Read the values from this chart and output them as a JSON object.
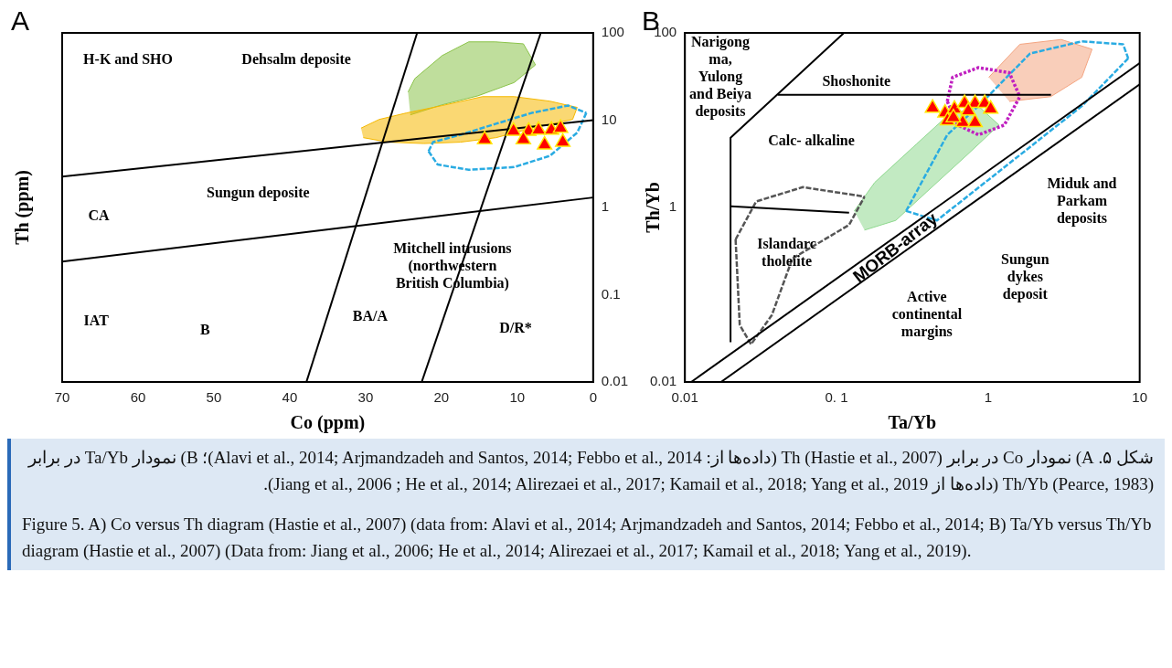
{
  "chart_data": [
    {
      "type": "scatter",
      "xlabel": "Co (ppm)",
      "ylabel": "Th (ppm)",
      "log": "y2",
      "xlim": [
        70,
        0
      ],
      "xticks": [
        70,
        60,
        50,
        40,
        30,
        20,
        10,
        0
      ],
      "y2lim": [
        0.01,
        100
      ],
      "y2ticks": [
        0.01,
        0.1,
        1,
        10,
        100
      ],
      "grid": false,
      "legend": false,
      "series": [
        {
          "type": "area",
          "color": "#8bc34a",
          "marker": "none",
          "axis": "y2",
          "x": [
            24.4,
            23.5,
            19.9,
            16.4,
            12.9,
            9.2,
            7.6,
            10.4,
            15.2,
            19.9,
            24.1
          ],
          "values": [
            21,
            30,
            55,
            79,
            79,
            75,
            43,
            27,
            19,
            15,
            11.5
          ]
        },
        {
          "type": "area",
          "color": "#f5b800",
          "marker": "none",
          "axis": "y2",
          "x": [
            30.6,
            28.2,
            24.6,
            19.9,
            14.6,
            10.4,
            5.7,
            2.1,
            2.7,
            8.1,
            12.8,
            17.5,
            22.3,
            27.0,
            30.3
          ],
          "values": [
            8.1,
            10.2,
            12.1,
            14.7,
            18.6,
            18.6,
            16.5,
            14,
            10.2,
            8.1,
            6.3,
            5.6,
            5.4,
            5.6,
            6.3
          ]
        },
        {
          "type": "line",
          "color": "#29abe2",
          "marker": "none",
          "line_style": "dashed",
          "axis": "y2",
          "x": [
            21.7,
            21.1,
            17.5,
            12.8,
            8.1,
            3.3,
            0.9
          ],
          "values": [
            4.4,
            5.6,
            6.8,
            9.1,
            12.1,
            14.7,
            12.1
          ]
        },
        {
          "type": "line",
          "color": "#29abe2",
          "marker": "none",
          "line_style": "dashed",
          "axis": "y2",
          "x": [
            21.7,
            20.5,
            16.4,
            10.4,
            5.7,
            2.1,
            0.9
          ],
          "values": [
            4.4,
            3.1,
            2.7,
            2.9,
            3.9,
            7.2,
            12.1
          ]
        },
        {
          "type": "line",
          "color": "#000000",
          "marker": "none",
          "axis": "y2",
          "x": [
            70,
            0
          ],
          "values": [
            2.26,
            10
          ]
        },
        {
          "type": "line",
          "color": "#000000",
          "marker": "none",
          "axis": "y2",
          "x": [
            70,
            0
          ],
          "values": [
            0.24,
            1.3
          ]
        },
        {
          "type": "line",
          "color": "#000000",
          "marker": "none",
          "axis": "y2",
          "x": [
            37.8,
            23.2
          ],
          "values": [
            0.01,
            100
          ]
        },
        {
          "type": "line",
          "color": "#000000",
          "marker": "none",
          "axis": "y2",
          "x": [
            22.6,
            6.9
          ],
          "values": [
            0.01,
            100
          ]
        },
        {
          "type": "scatter",
          "color": "#ff0000",
          "marker": "triangle",
          "axis": "y2",
          "x": [
            14.3,
            10.5,
            8.5,
            7.2,
            5.5,
            4.3,
            9.2,
            6.4,
            4.0
          ],
          "values": [
            6.0,
            7.5,
            7.5,
            7.7,
            7.7,
            8.1,
            6.0,
            5.2,
            5.6
          ]
        }
      ],
      "annotations": [
        "A",
        "H-K and SHO",
        "Dehsalm deposite",
        "Sungun deposite",
        "CA",
        "Mitchell intrusions\n(northwestern\nBritish Columbia)",
        "IAT",
        "B",
        "BA/A",
        "D/R*"
      ]
    },
    {
      "type": "scatter",
      "xlabel": "Ta/Yb",
      "ylabel": "Th/Yb",
      "log": "xy",
      "xlim": [
        0.01,
        10
      ],
      "xticks": [
        {
          "value": 0.01,
          "label": "0.01"
        },
        {
          "value": 0.1,
          "label": "0. 1"
        },
        {
          "value": 1,
          "label": "1"
        },
        {
          "value": 10,
          "label": "10"
        }
      ],
      "ylim": [
        0.01,
        100
      ],
      "yticks": [
        0.01,
        1,
        100
      ],
      "grid": false,
      "legend": false,
      "series": [
        {
          "type": "area",
          "color": "#8fd88f",
          "marker": "none",
          "x": [
            0.131,
            0.179,
            0.336,
            0.538,
            0.863,
            1.18,
            0.738,
            0.394,
            0.246,
            0.153
          ],
          "values": [
            0.91,
            1.94,
            5.3,
            11.2,
            14.5,
            8.8,
            4.1,
            1.51,
            0.71,
            0.55
          ]
        },
        {
          "type": "area",
          "color": "#f4a582",
          "marker": "none",
          "x": [
            1.01,
            1.62,
            3.03,
            4.85,
            4.15,
            2.59,
            1.38
          ],
          "values": [
            31,
            74,
            84,
            65,
            31,
            18.6,
            16.4
          ]
        },
        {
          "type": "line",
          "color": "#29abe2",
          "marker": "none",
          "line_style": "dashed",
          "x": [
            0.288,
            0.538,
            0.863,
            1.89,
            4.15,
            7.77,
            8.4
          ],
          "values": [
            0.91,
            6.8,
            14.5,
            58,
            80,
            74,
            51
          ]
        },
        {
          "type": "line",
          "color": "#29abe2",
          "marker": "none",
          "line_style": "dashed",
          "x": [
            0.288,
            0.46,
            1.38,
            4.15,
            8.4
          ],
          "values": [
            0.91,
            0.71,
            3.2,
            14.5,
            51
          ]
        },
        {
          "type": "line",
          "color": "#555555",
          "marker": "none",
          "line_style": "dashed",
          "x": [
            0.0216,
            0.0295,
            0.06,
            0.153
          ],
          "values": [
            0.43,
            1.17,
            1.71,
            1.33
          ]
        },
        {
          "type": "line",
          "color": "#555555",
          "marker": "none",
          "line_style": "dashed",
          "x": [
            0.0216,
            0.023,
            0.0273,
            0.0374,
            0.0512,
            0.121,
            0.153
          ],
          "values": [
            0.43,
            0.045,
            0.027,
            0.058,
            0.26,
            0.63,
            1.33
          ]
        },
        {
          "type": "line",
          "color": "#c020c0",
          "marker": "none",
          "line_style": "dotted",
          "x": [
            0.538,
            0.583,
            0.863,
            1.38,
            1.62
          ],
          "values": [
            16.4,
            31,
            40,
            35,
            18.6
          ]
        },
        {
          "type": "line",
          "color": "#c020c0",
          "marker": "none",
          "line_style": "dotted",
          "x": [
            0.538,
            0.631,
            0.863,
            1.28,
            1.62
          ],
          "values": [
            16.4,
            8.8,
            6.8,
            8.8,
            18.6
          ]
        },
        {
          "type": "line",
          "color": "#000000",
          "marker": "none",
          "x": [
            0.011,
            10
          ],
          "values": [
            0.01,
            45
          ]
        },
        {
          "type": "line",
          "color": "#000000",
          "marker": "none",
          "x": [
            0.0173,
            10
          ],
          "values": [
            0.01,
            25.8
          ]
        },
        {
          "type": "line",
          "color": "#000000",
          "marker": "none",
          "x": [
            0.02,
            0.02,
            0.112
          ],
          "values": [
            0.0286,
            6.3,
            100
          ]
        },
        {
          "type": "line",
          "color": "#000000",
          "marker": "none",
          "x": [
            0.041,
            2.6
          ],
          "values": [
            19.5,
            19.5
          ]
        },
        {
          "type": "line",
          "color": "#000000",
          "marker": "none",
          "x": [
            0.02,
            0.121
          ],
          "values": [
            1.03,
            0.87
          ]
        },
        {
          "type": "scatter",
          "color": "#ff0000",
          "marker": "triangle",
          "x": [
            0.43,
            0.52,
            0.6,
            0.7,
            0.82,
            0.95,
            1.04,
            0.54,
            0.68,
            0.82,
            0.59,
            0.74
          ],
          "values": [
            13.8,
            12.1,
            13.4,
            15.6,
            15.6,
            15.6,
            13.4,
            9.9,
            9.4,
            9.4,
            10.7,
            12.8
          ]
        }
      ],
      "annotations": [
        "B",
        "Narigong\nma,\nYulong\nand Beiya\ndeposits",
        "Shoshonite",
        "Calc- alkaline",
        "Islandarc\ntholeiite",
        "MORB-array",
        "Active\ncontinental\nmargins",
        "Miduk and\nParkam\ndeposits",
        "Sungun\ndykes\ndeposit"
      ]
    },
    {
      "type": "other",
      "annotations": [
        "شکل ۵. A) نمودار Co در برابر Th (Hastie et al., 2007) (داده‌ها از: Alavi et al., 2014; Arjmandzadeh and Santos, 2014; Febbo et al., 2014)؛ B) نمودار Ta/Yb در برابر Th/Yb (Pearce, 1983) (داده‌ها از Jiang et al., 2006 ; He et al., 2014; Alirezaei et al., 2017; Kamail et al., 2018; Yang et al., 2019).",
        "Figure 5. A) Co versus Th diagram (Hastie et al., 2007) (data from: Alavi et al., 2014; Arjmandzadeh and Santos, 2014; Febbo et al., 2014; B) Ta/Yb versus Th/Yb diagram (Hastie et al., 2007) (Data from: Jiang et al., 2006; He et al., 2014; Alirezaei et al., 2017; Kamail et al., 2018; Yang et al., 2019)."
      ]
    }
  ]
}
